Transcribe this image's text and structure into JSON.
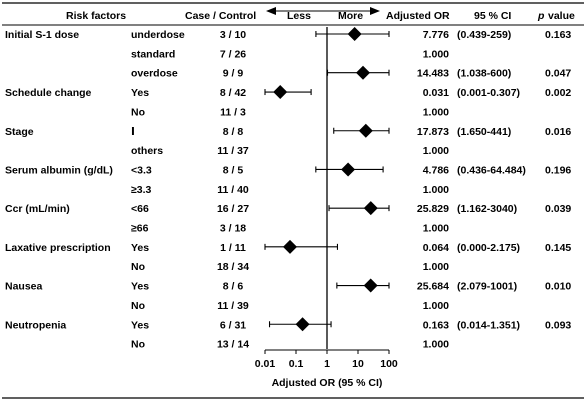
{
  "headers": {
    "risk_factors": "Risk factors",
    "case_control": "Case / Control",
    "less": "Less",
    "more": "More",
    "adjusted_or": "Adjusted OR",
    "ci": "95 % CI",
    "p_label": "p",
    "p_value": "value"
  },
  "chart_data": {
    "type": "forest",
    "x_scale": "log",
    "xlim": [
      0.01,
      100
    ],
    "x_ticks": [
      {
        "value": 0.01,
        "label": "0.01"
      },
      {
        "value": 0.1,
        "label": "0.1"
      },
      {
        "value": 1,
        "label": "1"
      },
      {
        "value": 10,
        "label": "10"
      },
      {
        "value": 100,
        "label": "100"
      }
    ],
    "reference_line": 1,
    "xlabel": "Adjusted OR (95 % CI)",
    "rows": [
      {
        "factor": "Initial S-1 dose",
        "level": "underdose",
        "case_control": "3 / 10",
        "or": 7.776,
        "or_text": "7.776",
        "ci": [
          0.439,
          259
        ],
        "ci_text": "(0.439-259)",
        "p": "0.163"
      },
      {
        "factor": "",
        "level": "standard",
        "case_control": "7 / 26",
        "or": null,
        "or_text": "1.000",
        "ci": null,
        "ci_text": "",
        "p": ""
      },
      {
        "factor": "",
        "level": "overdose",
        "case_control": "9 / 9",
        "or": 14.483,
        "or_text": "14.483",
        "ci": [
          1.038,
          600
        ],
        "ci_text": "(1.038-600)",
        "p": "0.047"
      },
      {
        "factor": "Schedule change",
        "level": "Yes",
        "case_control": "8 / 42",
        "or": 0.031,
        "or_text": "0.031",
        "ci": [
          0.001,
          0.307
        ],
        "ci_text": "(0.001-0.307)",
        "p": "0.002"
      },
      {
        "factor": "",
        "level": "No",
        "case_control": "11 / 3",
        "or": null,
        "or_text": "1.000",
        "ci": null,
        "ci_text": "",
        "p": ""
      },
      {
        "factor": "Stage",
        "level": "Ⅰ",
        "case_control": "8 / 8",
        "or": 17.873,
        "or_text": "17.873",
        "ci": [
          1.65,
          441
        ],
        "ci_text": "(1.650-441)",
        "p": "0.016"
      },
      {
        "factor": "",
        "level": "others",
        "case_control": "11 / 37",
        "or": null,
        "or_text": "1.000",
        "ci": null,
        "ci_text": "",
        "p": ""
      },
      {
        "factor": "Serum albumin (g/dL)",
        "level": "<3.3",
        "case_control": "8 / 5",
        "or": 4.786,
        "or_text": "4.786",
        "ci": [
          0.436,
          64.484
        ],
        "ci_text": "(0.436-64.484)",
        "p": "0.196"
      },
      {
        "factor": "",
        "level": "≥3.3",
        "case_control": "11 / 40",
        "or": null,
        "or_text": "1.000",
        "ci": null,
        "ci_text": "",
        "p": ""
      },
      {
        "factor": "Ccr (mL/min)",
        "level": "<66",
        "case_control": "16 / 27",
        "or": 25.829,
        "or_text": "25.829",
        "ci": [
          1.162,
          3040
        ],
        "ci_text": "(1.162-3040)",
        "p": "0.039"
      },
      {
        "factor": "",
        "level": "≥66",
        "case_control": "3 / 18",
        "or": null,
        "or_text": "1.000",
        "ci": null,
        "ci_text": "",
        "p": ""
      },
      {
        "factor": "Laxative prescription",
        "level": "Yes",
        "case_control": "1 / 11",
        "or": 0.064,
        "or_text": "0.064",
        "ci": [
          0.0,
          2.175
        ],
        "ci_text": "(0.000-2.175)",
        "p": "0.145"
      },
      {
        "factor": "",
        "level": "No",
        "case_control": "18 / 34",
        "or": null,
        "or_text": "1.000",
        "ci": null,
        "ci_text": "",
        "p": ""
      },
      {
        "factor": "Nausea",
        "level": "Yes",
        "case_control": "8 / 6",
        "or": 25.684,
        "or_text": "25.684",
        "ci": [
          2.079,
          1001
        ],
        "ci_text": "(2.079-1001)",
        "p": "0.010"
      },
      {
        "factor": "",
        "level": "No",
        "case_control": "11 / 39",
        "or": null,
        "or_text": "1.000",
        "ci": null,
        "ci_text": "",
        "p": ""
      },
      {
        "factor": "Neutropenia",
        "level": "Yes",
        "case_control": "6 / 31",
        "or": 0.163,
        "or_text": "0.163",
        "ci": [
          0.014,
          1.351
        ],
        "ci_text": "(0.014-1.351)",
        "p": "0.093"
      },
      {
        "factor": "",
        "level": "No",
        "case_control": "13 / 14",
        "or": null,
        "or_text": "1.000",
        "ci": null,
        "ci_text": "",
        "p": ""
      }
    ]
  }
}
